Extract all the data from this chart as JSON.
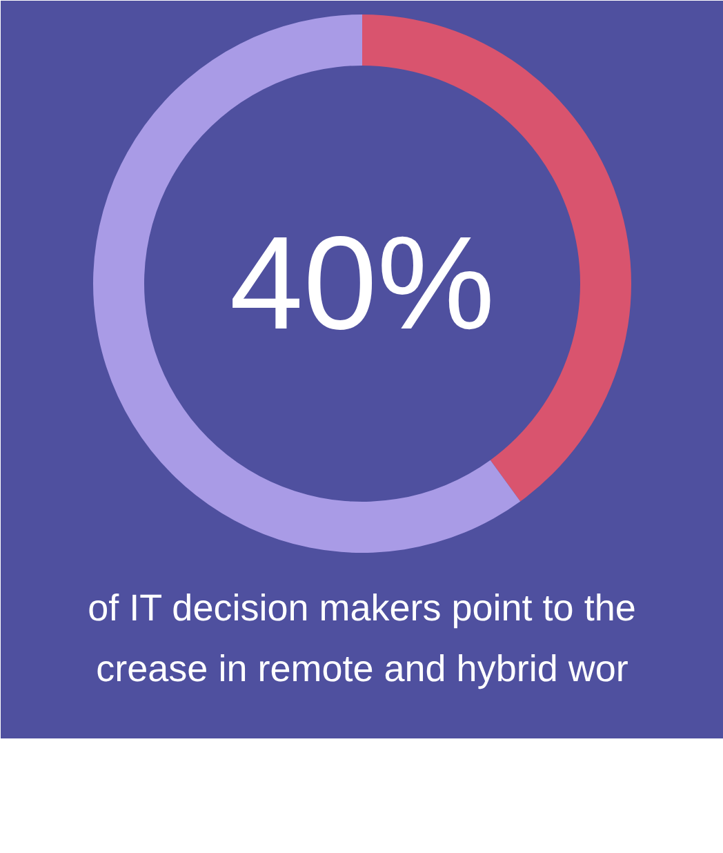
{
  "chart_data": {
    "type": "donut",
    "categories": [
      null,
      null
    ],
    "values": [
      40,
      60
    ],
    "colors": [
      "#d9546e",
      "#a99be6"
    ],
    "value_labels": [
      "40%",
      null
    ],
    "annotations": [
      "of IT decision makers point to the",
      "crease in remote and hybrid wor"
    ]
  }
}
